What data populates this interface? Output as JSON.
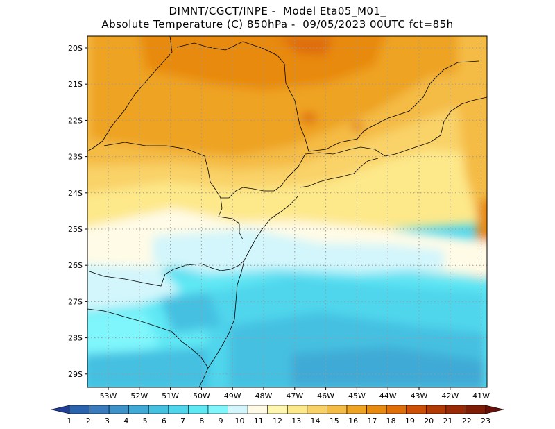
{
  "title_line1": "DIMNT/CGCT/INPE -  Model Eta05_M01_",
  "title_line2": "Absolute Temperature (C) 850hPa -  09/05/2023 00UTC fct=85h",
  "lat_labels": [
    "20S",
    "21S",
    "22S",
    "23S",
    "24S",
    "25S",
    "26S",
    "27S",
    "28S",
    "29S"
  ],
  "lon_labels": [
    "53W",
    "52W",
    "51W",
    "50W",
    "49W",
    "48W",
    "47W",
    "46W",
    "45W",
    "44W",
    "43W",
    "42W",
    "41W"
  ],
  "colorbar": {
    "labels": [
      "1",
      "2",
      "3",
      "4",
      "5",
      "6",
      "7",
      "8",
      "9",
      "10",
      "11",
      "12",
      "13",
      "14",
      "15",
      "16",
      "17",
      "18",
      "19",
      "20",
      "21",
      "22",
      "23"
    ],
    "colors": [
      "#1f3e96",
      "#2b64ae",
      "#3a7bbd",
      "#3d93c8",
      "#3faad6",
      "#44c0e1",
      "#4fd5ec",
      "#5ee8f4",
      "#7ff6fc",
      "#d2f6fb",
      "#fffbe6",
      "#fff6b0",
      "#fde88a",
      "#f9d267",
      "#f4bb45",
      "#eea322",
      "#e88a10",
      "#df6d08",
      "#cd4f06",
      "#b23a05",
      "#9a2a05",
      "#7e1c06",
      "#661009"
    ]
  }
}
